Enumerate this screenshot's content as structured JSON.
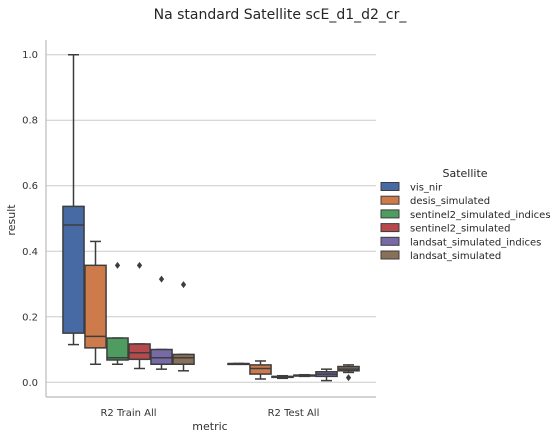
{
  "chart_data": {
    "type": "box",
    "title": "Na standard Satellite scE_d1_d2_cr_",
    "xlabel": "metric",
    "ylabel": "result",
    "categories": [
      "R2 Train All",
      "R2 Test All"
    ],
    "ylim": [
      -0.045,
      1.045
    ],
    "yticks": [
      0.0,
      0.2,
      0.4,
      0.6,
      0.8,
      1.0
    ],
    "ytick_labels": [
      "0.0",
      "0.2",
      "0.4",
      "0.6",
      "0.8",
      "1.0"
    ],
    "grid": "horizontal",
    "legend": {
      "title": "Satellite",
      "placement": "right"
    },
    "series": [
      {
        "name": "vis_nir",
        "color": "#4c72b0",
        "boxes": [
          {
            "whislo": 0.115,
            "q1": 0.15,
            "median": 0.48,
            "q3": 0.537,
            "whishi": 1.0,
            "fliers": []
          },
          {
            "whislo": 0.057,
            "q1": 0.057,
            "median": 0.057,
            "q3": 0.057,
            "whishi": 0.057,
            "fliers": []
          }
        ]
      },
      {
        "name": "desis_simulated",
        "color": "#dd8452",
        "boxes": [
          {
            "whislo": 0.055,
            "q1": 0.105,
            "median": 0.14,
            "q3": 0.357,
            "whishi": 0.43,
            "fliers": []
          },
          {
            "whislo": 0.01,
            "q1": 0.025,
            "median": 0.042,
            "q3": 0.053,
            "whishi": 0.065,
            "fliers": []
          }
        ]
      },
      {
        "name": "sentinel2_simulated_indices",
        "color": "#55a868",
        "boxes": [
          {
            "whislo": 0.055,
            "q1": 0.068,
            "median": 0.075,
            "q3": 0.135,
            "whishi": 0.135,
            "fliers": [
              0.357
            ]
          },
          {
            "whislo": 0.012,
            "q1": 0.015,
            "median": 0.017,
            "q3": 0.018,
            "whishi": 0.02,
            "fliers": []
          }
        ]
      },
      {
        "name": "sentinel2_simulated",
        "color": "#c44e52",
        "boxes": [
          {
            "whislo": 0.042,
            "q1": 0.07,
            "median": 0.09,
            "q3": 0.117,
            "whishi": 0.117,
            "fliers": [
              0.357
            ]
          },
          {
            "whislo": 0.018,
            "q1": 0.019,
            "median": 0.02,
            "q3": 0.022,
            "whishi": 0.023,
            "fliers": []
          }
        ]
      },
      {
        "name": "landsat_simulated_indices",
        "color": "#8172b3",
        "boxes": [
          {
            "whislo": 0.04,
            "q1": 0.055,
            "median": 0.075,
            "q3": 0.1,
            "whishi": 0.1,
            "fliers": [
              0.315
            ]
          },
          {
            "whislo": 0.005,
            "q1": 0.018,
            "median": 0.025,
            "q3": 0.032,
            "whishi": 0.04,
            "fliers": []
          }
        ]
      },
      {
        "name": "landsat_simulated",
        "color": "#937860",
        "boxes": [
          {
            "whislo": 0.035,
            "q1": 0.055,
            "median": 0.075,
            "q3": 0.085,
            "whishi": 0.085,
            "fliers": [
              0.298
            ]
          },
          {
            "whislo": 0.03,
            "q1": 0.035,
            "median": 0.04,
            "q3": 0.048,
            "whishi": 0.053,
            "fliers": [
              0.014
            ]
          }
        ]
      }
    ]
  }
}
